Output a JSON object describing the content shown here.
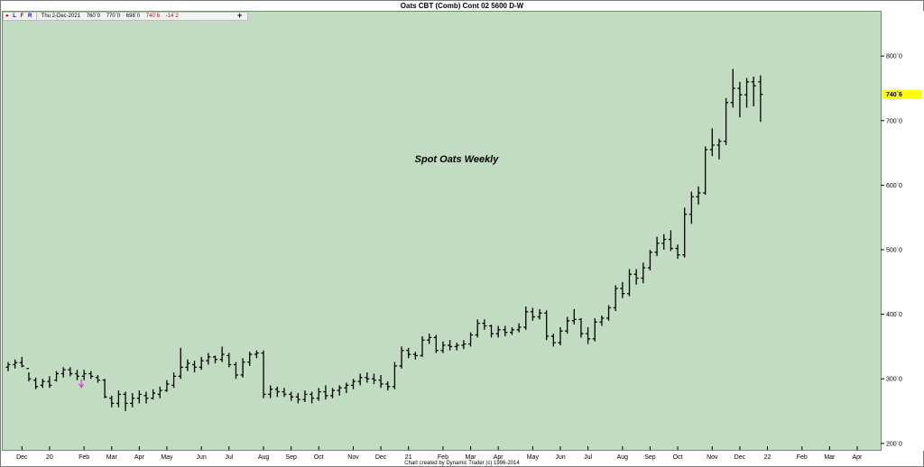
{
  "window": {
    "title": "Oats CBT (Comb) Cont 02 5600 D-W",
    "credit": "Chart created by Dynamic Trader  (c) 1996-2014"
  },
  "info_bar": {
    "flags": [
      "L",
      "F",
      "R"
    ],
    "date": "Thu 2-Dec-2021",
    "open": "760`0",
    "high": "770`0",
    "low": "698`0",
    "close": "740`6",
    "change": "-14`2"
  },
  "annotation": "Spot Oats Weekly",
  "colors": {
    "plot_bg": "#c1dcc1",
    "bar": "#000000",
    "last_price_highlight": "#ffff00",
    "marker": "#cc33cc"
  },
  "chart_data": {
    "type": "ohlc",
    "title": "Oats CBT (Comb) Cont 02 5600 D-W",
    "subtitle": "Spot Oats Weekly",
    "ylim": [
      190,
      870
    ],
    "y_ticks": [
      {
        "value": 200,
        "label": "200`0"
      },
      {
        "value": 300,
        "label": "300`0"
      },
      {
        "value": 400,
        "label": "400`0"
      },
      {
        "value": 500,
        "label": "500`0"
      },
      {
        "value": 600,
        "label": "600`0"
      },
      {
        "value": 700,
        "label": "700`0"
      },
      {
        "value": 800,
        "label": "800`0"
      }
    ],
    "x_ticks": [
      {
        "label": "Dec",
        "week": 2
      },
      {
        "label": "20",
        "week": 6
      },
      {
        "label": "Feb",
        "week": 11
      },
      {
        "label": "Mar",
        "week": 15
      },
      {
        "label": "Apr",
        "week": 19
      },
      {
        "label": "May",
        "week": 23
      },
      {
        "label": "Jun",
        "week": 28
      },
      {
        "label": "Jul",
        "week": 32
      },
      {
        "label": "Aug",
        "week": 37
      },
      {
        "label": "Sep",
        "week": 41
      },
      {
        "label": "Oct",
        "week": 45
      },
      {
        "label": "Nov",
        "week": 50
      },
      {
        "label": "Dec",
        "week": 54
      },
      {
        "label": "21",
        "week": 58
      },
      {
        "label": "Feb",
        "week": 63
      },
      {
        "label": "Mar",
        "week": 67
      },
      {
        "label": "Apr",
        "week": 71
      },
      {
        "label": "May",
        "week": 76
      },
      {
        "label": "Jun",
        "week": 80
      },
      {
        "label": "Jul",
        "week": 84
      },
      {
        "label": "Aug",
        "week": 89
      },
      {
        "label": "Sep",
        "week": 93
      },
      {
        "label": "Oct",
        "week": 97
      },
      {
        "label": "Nov",
        "week": 102
      },
      {
        "label": "Dec",
        "week": 106
      },
      {
        "label": "22",
        "week": 110
      },
      {
        "label": "Feb",
        "week": 115
      },
      {
        "label": "Mar",
        "week": 119
      },
      {
        "label": "Apr",
        "week": 123
      }
    ],
    "last_price": {
      "value": 740.75,
      "label": "740`6"
    },
    "bars": [
      {
        "o": 318,
        "h": 326,
        "l": 312,
        "c": 322
      },
      {
        "o": 322,
        "h": 330,
        "l": 316,
        "c": 325
      },
      {
        "o": 325,
        "h": 334,
        "l": 318,
        "c": 320
      },
      {
        "o": 316,
        "h": 310,
        "l": 296,
        "c": 300
      },
      {
        "o": 298,
        "h": 302,
        "l": 284,
        "c": 288
      },
      {
        "o": 290,
        "h": 300,
        "l": 286,
        "c": 296
      },
      {
        "o": 296,
        "h": 304,
        "l": 286,
        "c": 290
      },
      {
        "o": 298,
        "h": 312,
        "l": 296,
        "c": 308
      },
      {
        "o": 308,
        "h": 318,
        "l": 302,
        "c": 314
      },
      {
        "o": 314,
        "h": 318,
        "l": 304,
        "c": 308
      },
      {
        "o": 308,
        "h": 314,
        "l": 298,
        "c": 304
      },
      {
        "o": 304,
        "h": 314,
        "l": 298,
        "c": 308
      },
      {
        "o": 308,
        "h": 312,
        "l": 300,
        "c": 304
      },
      {
        "o": 302,
        "h": 306,
        "l": 294,
        "c": 298
      },
      {
        "o": 298,
        "h": 300,
        "l": 270,
        "c": 272
      },
      {
        "o": 270,
        "h": 274,
        "l": 256,
        "c": 262
      },
      {
        "o": 262,
        "h": 282,
        "l": 256,
        "c": 276
      },
      {
        "o": 276,
        "h": 280,
        "l": 250,
        "c": 262
      },
      {
        "o": 262,
        "h": 278,
        "l": 256,
        "c": 270
      },
      {
        "o": 270,
        "h": 282,
        "l": 262,
        "c": 276
      },
      {
        "o": 274,
        "h": 280,
        "l": 262,
        "c": 270
      },
      {
        "o": 270,
        "h": 284,
        "l": 268,
        "c": 278
      },
      {
        "o": 276,
        "h": 288,
        "l": 270,
        "c": 282
      },
      {
        "o": 282,
        "h": 298,
        "l": 280,
        "c": 292
      },
      {
        "o": 290,
        "h": 310,
        "l": 286,
        "c": 304
      },
      {
        "o": 304,
        "h": 348,
        "l": 300,
        "c": 318
      },
      {
        "o": 318,
        "h": 330,
        "l": 312,
        "c": 324
      },
      {
        "o": 322,
        "h": 328,
        "l": 310,
        "c": 318
      },
      {
        "o": 318,
        "h": 334,
        "l": 314,
        "c": 328
      },
      {
        "o": 328,
        "h": 340,
        "l": 322,
        "c": 334
      },
      {
        "o": 334,
        "h": 336,
        "l": 324,
        "c": 330
      },
      {
        "o": 330,
        "h": 350,
        "l": 326,
        "c": 338
      },
      {
        "o": 336,
        "h": 340,
        "l": 318,
        "c": 322
      },
      {
        "o": 322,
        "h": 326,
        "l": 300,
        "c": 306
      },
      {
        "o": 306,
        "h": 332,
        "l": 302,
        "c": 326
      },
      {
        "o": 326,
        "h": 342,
        "l": 320,
        "c": 338
      },
      {
        "o": 338,
        "h": 344,
        "l": 332,
        "c": 340
      },
      {
        "o": 340,
        "h": 344,
        "l": 270,
        "c": 276
      },
      {
        "o": 276,
        "h": 290,
        "l": 270,
        "c": 284
      },
      {
        "o": 284,
        "h": 288,
        "l": 272,
        "c": 280
      },
      {
        "o": 280,
        "h": 286,
        "l": 272,
        "c": 276
      },
      {
        "o": 276,
        "h": 280,
        "l": 266,
        "c": 272
      },
      {
        "o": 272,
        "h": 278,
        "l": 262,
        "c": 268
      },
      {
        "o": 268,
        "h": 282,
        "l": 264,
        "c": 276
      },
      {
        "o": 276,
        "h": 280,
        "l": 262,
        "c": 270
      },
      {
        "o": 270,
        "h": 286,
        "l": 266,
        "c": 280
      },
      {
        "o": 280,
        "h": 290,
        "l": 268,
        "c": 274
      },
      {
        "o": 274,
        "h": 286,
        "l": 270,
        "c": 282
      },
      {
        "o": 282,
        "h": 290,
        "l": 274,
        "c": 286
      },
      {
        "o": 286,
        "h": 294,
        "l": 278,
        "c": 290
      },
      {
        "o": 290,
        "h": 300,
        "l": 284,
        "c": 296
      },
      {
        "o": 296,
        "h": 308,
        "l": 290,
        "c": 302
      },
      {
        "o": 302,
        "h": 310,
        "l": 294,
        "c": 300
      },
      {
        "o": 300,
        "h": 308,
        "l": 292,
        "c": 298
      },
      {
        "o": 298,
        "h": 306,
        "l": 286,
        "c": 292
      },
      {
        "o": 292,
        "h": 296,
        "l": 282,
        "c": 288
      },
      {
        "o": 288,
        "h": 326,
        "l": 284,
        "c": 320
      },
      {
        "o": 320,
        "h": 350,
        "l": 316,
        "c": 344
      },
      {
        "o": 344,
        "h": 348,
        "l": 332,
        "c": 338
      },
      {
        "o": 338,
        "h": 342,
        "l": 330,
        "c": 336
      },
      {
        "o": 336,
        "h": 366,
        "l": 334,
        "c": 360
      },
      {
        "o": 360,
        "h": 370,
        "l": 354,
        "c": 364
      },
      {
        "o": 364,
        "h": 368,
        "l": 340,
        "c": 344
      },
      {
        "o": 344,
        "h": 358,
        "l": 340,
        "c": 352
      },
      {
        "o": 352,
        "h": 360,
        "l": 344,
        "c": 350
      },
      {
        "o": 350,
        "h": 356,
        "l": 344,
        "c": 352
      },
      {
        "o": 352,
        "h": 360,
        "l": 346,
        "c": 354
      },
      {
        "o": 354,
        "h": 372,
        "l": 350,
        "c": 368
      },
      {
        "o": 368,
        "h": 392,
        "l": 364,
        "c": 386
      },
      {
        "o": 386,
        "h": 392,
        "l": 376,
        "c": 382
      },
      {
        "o": 382,
        "h": 384,
        "l": 364,
        "c": 370
      },
      {
        "o": 370,
        "h": 382,
        "l": 364,
        "c": 376
      },
      {
        "o": 376,
        "h": 382,
        "l": 366,
        "c": 372
      },
      {
        "o": 372,
        "h": 380,
        "l": 368,
        "c": 376
      },
      {
        "o": 376,
        "h": 386,
        "l": 372,
        "c": 380
      },
      {
        "o": 380,
        "h": 412,
        "l": 376,
        "c": 404
      },
      {
        "o": 404,
        "h": 410,
        "l": 390,
        "c": 396
      },
      {
        "o": 396,
        "h": 408,
        "l": 392,
        "c": 402
      },
      {
        "o": 402,
        "h": 406,
        "l": 360,
        "c": 366
      },
      {
        "o": 366,
        "h": 370,
        "l": 350,
        "c": 356
      },
      {
        "o": 356,
        "h": 380,
        "l": 352,
        "c": 374
      },
      {
        "o": 374,
        "h": 396,
        "l": 370,
        "c": 390
      },
      {
        "o": 390,
        "h": 408,
        "l": 384,
        "c": 392
      },
      {
        "o": 392,
        "h": 394,
        "l": 364,
        "c": 370
      },
      {
        "o": 370,
        "h": 380,
        "l": 354,
        "c": 362
      },
      {
        "o": 362,
        "h": 394,
        "l": 358,
        "c": 388
      },
      {
        "o": 388,
        "h": 398,
        "l": 382,
        "c": 394
      },
      {
        "o": 394,
        "h": 414,
        "l": 390,
        "c": 410
      },
      {
        "o": 410,
        "h": 445,
        "l": 405,
        "c": 440
      },
      {
        "o": 440,
        "h": 450,
        "l": 425,
        "c": 432
      },
      {
        "o": 432,
        "h": 470,
        "l": 428,
        "c": 462
      },
      {
        "o": 462,
        "h": 470,
        "l": 446,
        "c": 456
      },
      {
        "o": 456,
        "h": 480,
        "l": 448,
        "c": 472
      },
      {
        "o": 472,
        "h": 500,
        "l": 468,
        "c": 496
      },
      {
        "o": 496,
        "h": 520,
        "l": 490,
        "c": 510
      },
      {
        "o": 510,
        "h": 524,
        "l": 500,
        "c": 516
      },
      {
        "o": 516,
        "h": 530,
        "l": 498,
        "c": 502
      },
      {
        "o": 502,
        "h": 508,
        "l": 486,
        "c": 492
      },
      {
        "o": 492,
        "h": 565,
        "l": 488,
        "c": 555
      },
      {
        "o": 555,
        "h": 590,
        "l": 540,
        "c": 582
      },
      {
        "o": 582,
        "h": 598,
        "l": 570,
        "c": 588
      },
      {
        "o": 588,
        "h": 660,
        "l": 585,
        "c": 655
      },
      {
        "o": 655,
        "h": 688,
        "l": 645,
        "c": 662
      },
      {
        "o": 662,
        "h": 672,
        "l": 640,
        "c": 668
      },
      {
        "o": 668,
        "h": 735,
        "l": 662,
        "c": 728
      },
      {
        "o": 728,
        "h": 780,
        "l": 720,
        "c": 750
      },
      {
        "o": 750,
        "h": 760,
        "l": 705,
        "c": 740
      },
      {
        "o": 740,
        "h": 766,
        "l": 720,
        "c": 760
      },
      {
        "o": 760,
        "h": 768,
        "l": 722,
        "c": 754
      },
      {
        "o": 760,
        "h": 770,
        "l": 698,
        "c": 740.75
      }
    ],
    "markers": [
      {
        "type": "arrow-down",
        "week": 11,
        "value": 288
      }
    ]
  }
}
